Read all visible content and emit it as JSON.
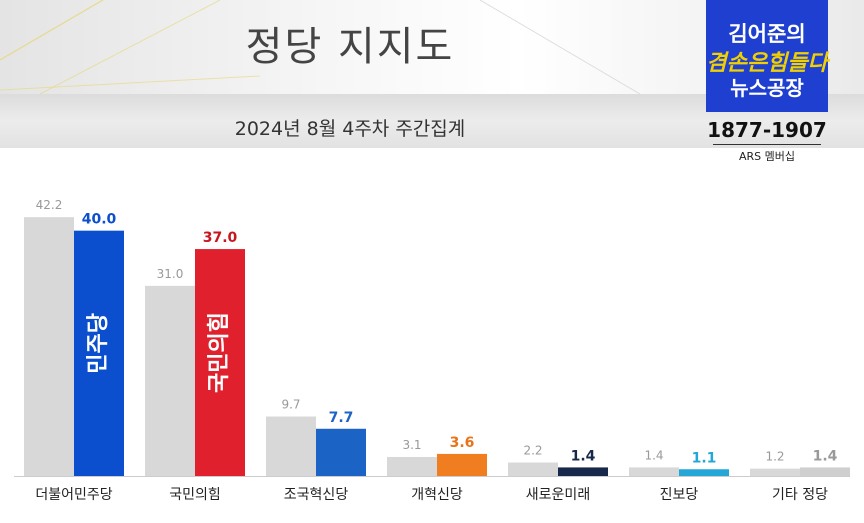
{
  "header": {
    "title": "정당 지지도",
    "subtitle": "2024년 8월 4주차 주간집계"
  },
  "logo": {
    "line1": "김어준의",
    "line2": "겸손은힘들다",
    "line3": "뉴스공장",
    "phone": "1877-1907",
    "caption": "ARS 멤버십"
  },
  "chart_data": {
    "type": "bar",
    "title": "정당 지지도",
    "subtitle": "2024년 8월 4주차 주간집계",
    "categories": [
      "더불어민주당",
      "국민의힘",
      "조국혁신당",
      "개혁신당",
      "새로운미래",
      "진보당",
      "기타 정당"
    ],
    "series": [
      {
        "values": [
          42.2,
          31.0,
          9.7,
          3.1,
          2.2,
          1.4,
          1.2
        ],
        "labels": [
          "42.2",
          "31.0",
          "9.7",
          "3.1",
          "2.2",
          "1.4",
          "1.2"
        ],
        "color": "#d8d8d8"
      },
      {
        "values": [
          40.0,
          37.0,
          7.7,
          3.6,
          1.4,
          1.1,
          1.4
        ],
        "labels": [
          "40.0",
          "37.0",
          "7.7",
          "3.6",
          "1.4",
          "1.1",
          "1.4"
        ],
        "colors": [
          "#0b4fce",
          "#e0212d",
          "#1c63c6",
          "#f07d1f",
          "#18284a",
          "#24a6d6",
          "#cfcfcf"
        ],
        "label_colors": [
          "#0b4fce",
          "#c8161e",
          "#1c63c6",
          "#e8741a",
          "#18284a",
          "#24a6d6",
          "#999999"
        ]
      }
    ],
    "bar_text": {
      "0": "민주당",
      "1": "국민의힘"
    },
    "ylim": [
      0,
      45
    ],
    "grid": false,
    "legend": "none"
  }
}
